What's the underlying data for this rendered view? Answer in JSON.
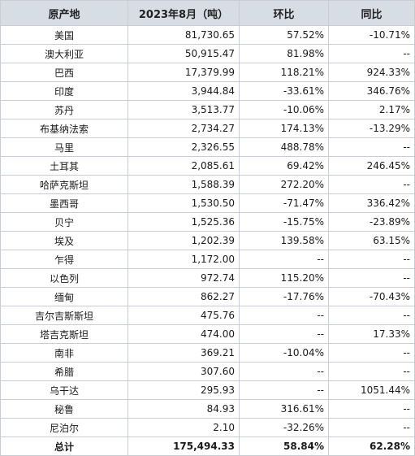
{
  "table": {
    "headers": [
      "原产地",
      "2023年8月（吨）",
      "环比",
      "同比"
    ],
    "rows": [
      {
        "origin": "美国",
        "amount": "81,730.65",
        "mom": "57.52%",
        "yoy": "-10.71%"
      },
      {
        "origin": "澳大利亚",
        "amount": "50,915.47",
        "mom": "81.98%",
        "yoy": "--"
      },
      {
        "origin": "巴西",
        "amount": "17,379.99",
        "mom": "118.21%",
        "yoy": "924.33%"
      },
      {
        "origin": "印度",
        "amount": "3,944.84",
        "mom": "-33.61%",
        "yoy": "346.76%"
      },
      {
        "origin": "苏丹",
        "amount": "3,513.77",
        "mom": "-10.06%",
        "yoy": "2.17%"
      },
      {
        "origin": "布基纳法索",
        "amount": "2,734.27",
        "mom": "174.13%",
        "yoy": "-13.29%"
      },
      {
        "origin": "马里",
        "amount": "2,326.55",
        "mom": "488.78%",
        "yoy": "--"
      },
      {
        "origin": "土耳其",
        "amount": "2,085.61",
        "mom": "69.42%",
        "yoy": "246.45%"
      },
      {
        "origin": "哈萨克斯坦",
        "amount": "1,588.39",
        "mom": "272.20%",
        "yoy": "--"
      },
      {
        "origin": "墨西哥",
        "amount": "1,530.50",
        "mom": "-71.47%",
        "yoy": "336.42%"
      },
      {
        "origin": "贝宁",
        "amount": "1,525.36",
        "mom": "-15.75%",
        "yoy": "-23.89%"
      },
      {
        "origin": "埃及",
        "amount": "1,202.39",
        "mom": "139.58%",
        "yoy": "63.15%"
      },
      {
        "origin": "乍得",
        "amount": "1,172.00",
        "mom": "--",
        "yoy": "--"
      },
      {
        "origin": "以色列",
        "amount": "972.74",
        "mom": "115.20%",
        "yoy": "--"
      },
      {
        "origin": "缅甸",
        "amount": "862.27",
        "mom": "-17.76%",
        "yoy": "-70.43%"
      },
      {
        "origin": "吉尔吉斯斯坦",
        "amount": "475.76",
        "mom": "--",
        "yoy": "--"
      },
      {
        "origin": "塔吉克斯坦",
        "amount": "474.00",
        "mom": "--",
        "yoy": "17.33%"
      },
      {
        "origin": "南非",
        "amount": "369.21",
        "mom": "-10.04%",
        "yoy": "--"
      },
      {
        "origin": "希腊",
        "amount": "307.60",
        "mom": "--",
        "yoy": "--"
      },
      {
        "origin": "乌干达",
        "amount": "295.93",
        "mom": "--",
        "yoy": "1051.44%"
      },
      {
        "origin": "秘鲁",
        "amount": "84.93",
        "mom": "316.61%",
        "yoy": "--"
      },
      {
        "origin": "尼泊尔",
        "amount": "2.10",
        "mom": "-32.26%",
        "yoy": "--"
      }
    ],
    "total": {
      "origin": "总计",
      "amount": "175,494.33",
      "mom": "58.84%",
      "yoy": "62.28%"
    }
  }
}
